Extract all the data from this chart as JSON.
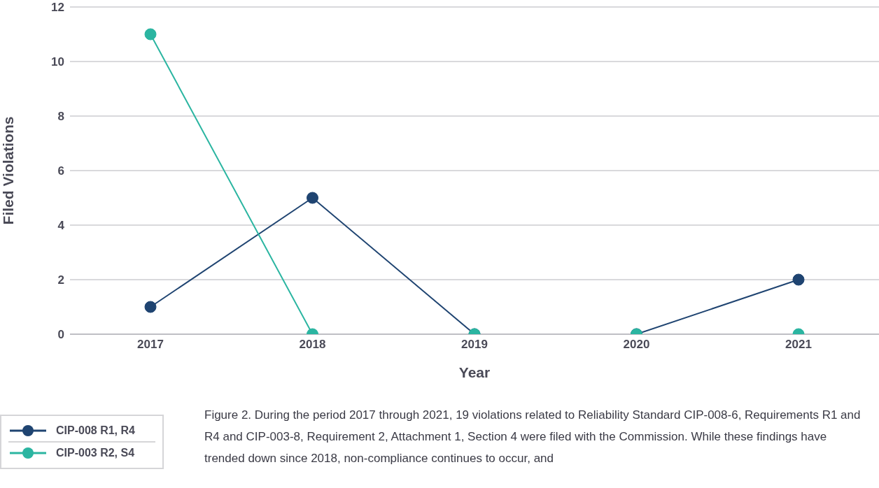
{
  "chart_data": {
    "type": "line",
    "xlabel": "Year",
    "ylabel": "Filed Violations",
    "categories": [
      "2017",
      "2018",
      "2019",
      "2020",
      "2021"
    ],
    "series": [
      {
        "name": "CIP-008 R1, R4",
        "color": "#1f4471",
        "values": [
          1,
          5,
          0,
          0,
          2
        ]
      },
      {
        "name": "CIP-003 R2, S4",
        "color": "#2bb5a1",
        "values": [
          11,
          0,
          0,
          0,
          0
        ]
      }
    ],
    "ylim": [
      0,
      12
    ],
    "yticks": [
      0,
      2,
      4,
      6,
      8,
      10,
      12
    ],
    "grid": "y",
    "legend": "bottom left",
    "marker": "circle",
    "line_style": "solid",
    "annotations": [
      "Figure 2. During the period 2017 through 2021, 19 violations related to Reliability Standard CIP-008-6, Requirements R1 and R4 and CIP-003-8, Requirement 2, Attachment 1, Section 4 were filed with the Commission. While these findings have trended down since 2018, non-compliance continues to occur, and"
    ]
  }
}
